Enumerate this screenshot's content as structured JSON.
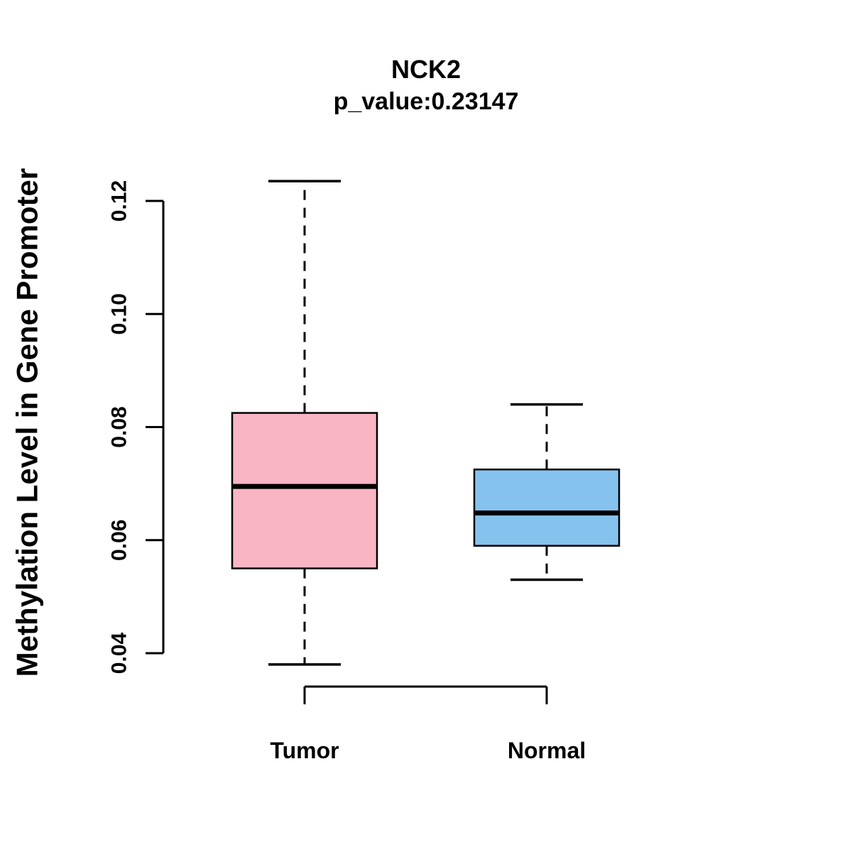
{
  "header": {
    "title": "NCK2",
    "subtitle": "p_value:0.23147"
  },
  "chart_data": {
    "type": "boxplot",
    "title": "NCK2",
    "subtitle": "p_value:0.23147",
    "p_value": 0.23147,
    "xlabel": "",
    "ylabel": "Methylation Level in Gene Promoter",
    "yticks": [
      0.04,
      0.06,
      0.08,
      0.1,
      0.12
    ],
    "ylim": [
      0.032,
      0.126
    ],
    "grid": false,
    "legend": "none",
    "whisker_line_style": "dashed",
    "groups": [
      {
        "label": "Tumor",
        "color": "#FAB5C5",
        "border_color": "#000000",
        "median_color": "#000000",
        "whisker_low": 0.038,
        "q1": 0.055,
        "median": 0.0695,
        "q3": 0.0825,
        "whisker_high": 0.1235
      },
      {
        "label": "Normal",
        "color": "#85C2EE",
        "border_color": "#000000",
        "median_color": "#000000",
        "whisker_low": 0.053,
        "q1": 0.059,
        "median": 0.0648,
        "q3": 0.0725,
        "whisker_high": 0.084
      }
    ]
  }
}
